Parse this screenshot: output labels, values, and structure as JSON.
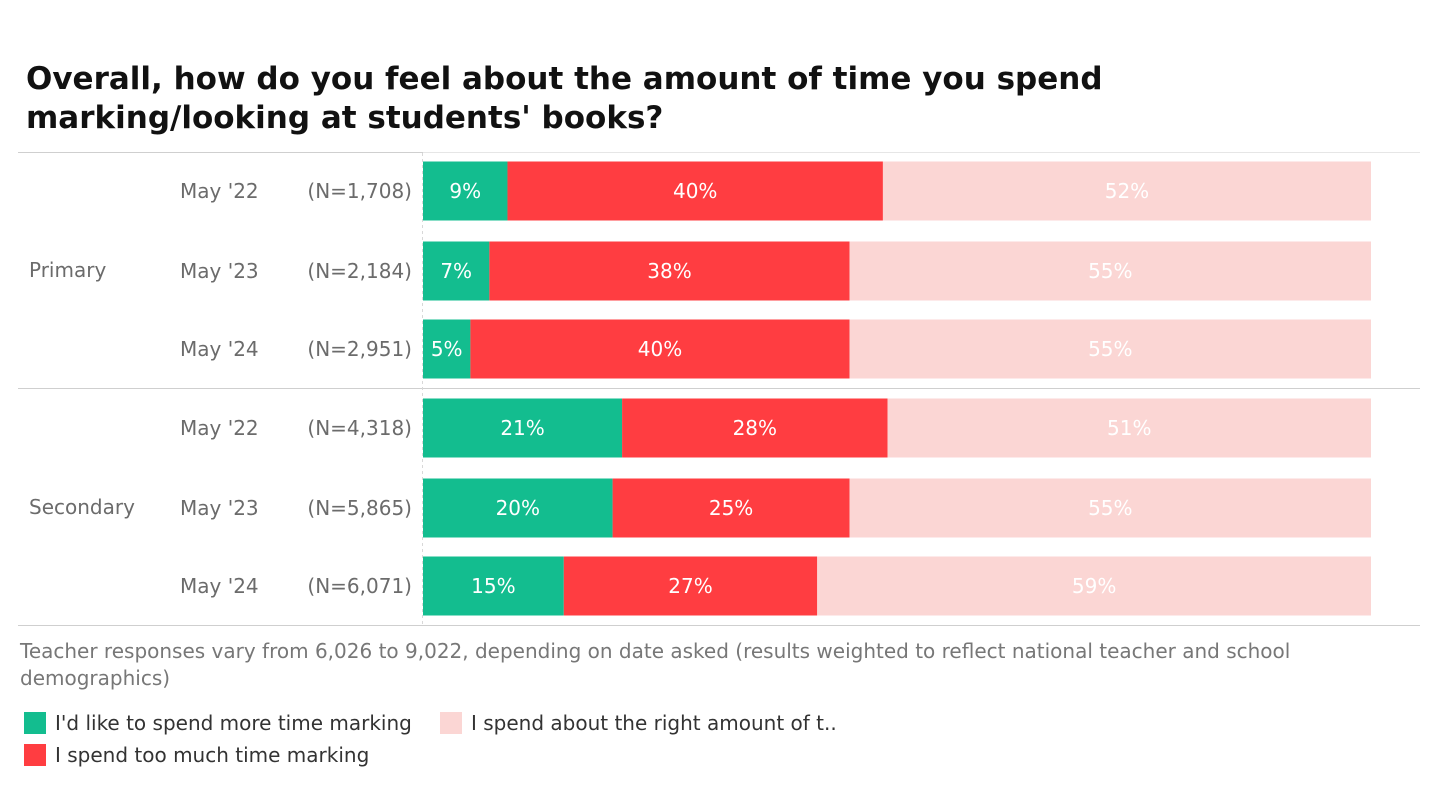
{
  "chart_data": {
    "type": "bar",
    "orientation": "horizontal",
    "stacked": true,
    "normalized": true,
    "title": "Overall, how do you feel about the amount of time you spend marking/looking at students' books?",
    "groups": [
      {
        "name": "Primary",
        "rows": [
          {
            "label": "May '22",
            "n": "(N=1,708)",
            "values": [
              9,
              40,
              52
            ]
          },
          {
            "label": "May '23",
            "n": "(N=2,184)",
            "values": [
              7,
              38,
              55
            ]
          },
          {
            "label": "May '24",
            "n": "(N=2,951)",
            "values": [
              5,
              40,
              55
            ]
          }
        ]
      },
      {
        "name": "Secondary",
        "rows": [
          {
            "label": "May '22",
            "n": "(N=4,318)",
            "values": [
              21,
              28,
              51
            ]
          },
          {
            "label": "May '23",
            "n": "(N=5,865)",
            "values": [
              20,
              25,
              55
            ]
          },
          {
            "label": "May '24",
            "n": "(N=6,071)",
            "values": [
              15,
              27,
              59
            ]
          }
        ]
      }
    ],
    "series": [
      {
        "name": "I'd like to spend more time marking",
        "color": "#13bd8f"
      },
      {
        "name": "I spend too much time marking",
        "color": "#ff3d41"
      },
      {
        "name": "I spend about the right amount of t..",
        "color": "#fbd6d4"
      }
    ],
    "note": "Teacher responses vary from 6,026 to 9,022, depending on date asked (results weighted to reflect national teacher and school demographics)",
    "legend_position": "bottom-left"
  }
}
